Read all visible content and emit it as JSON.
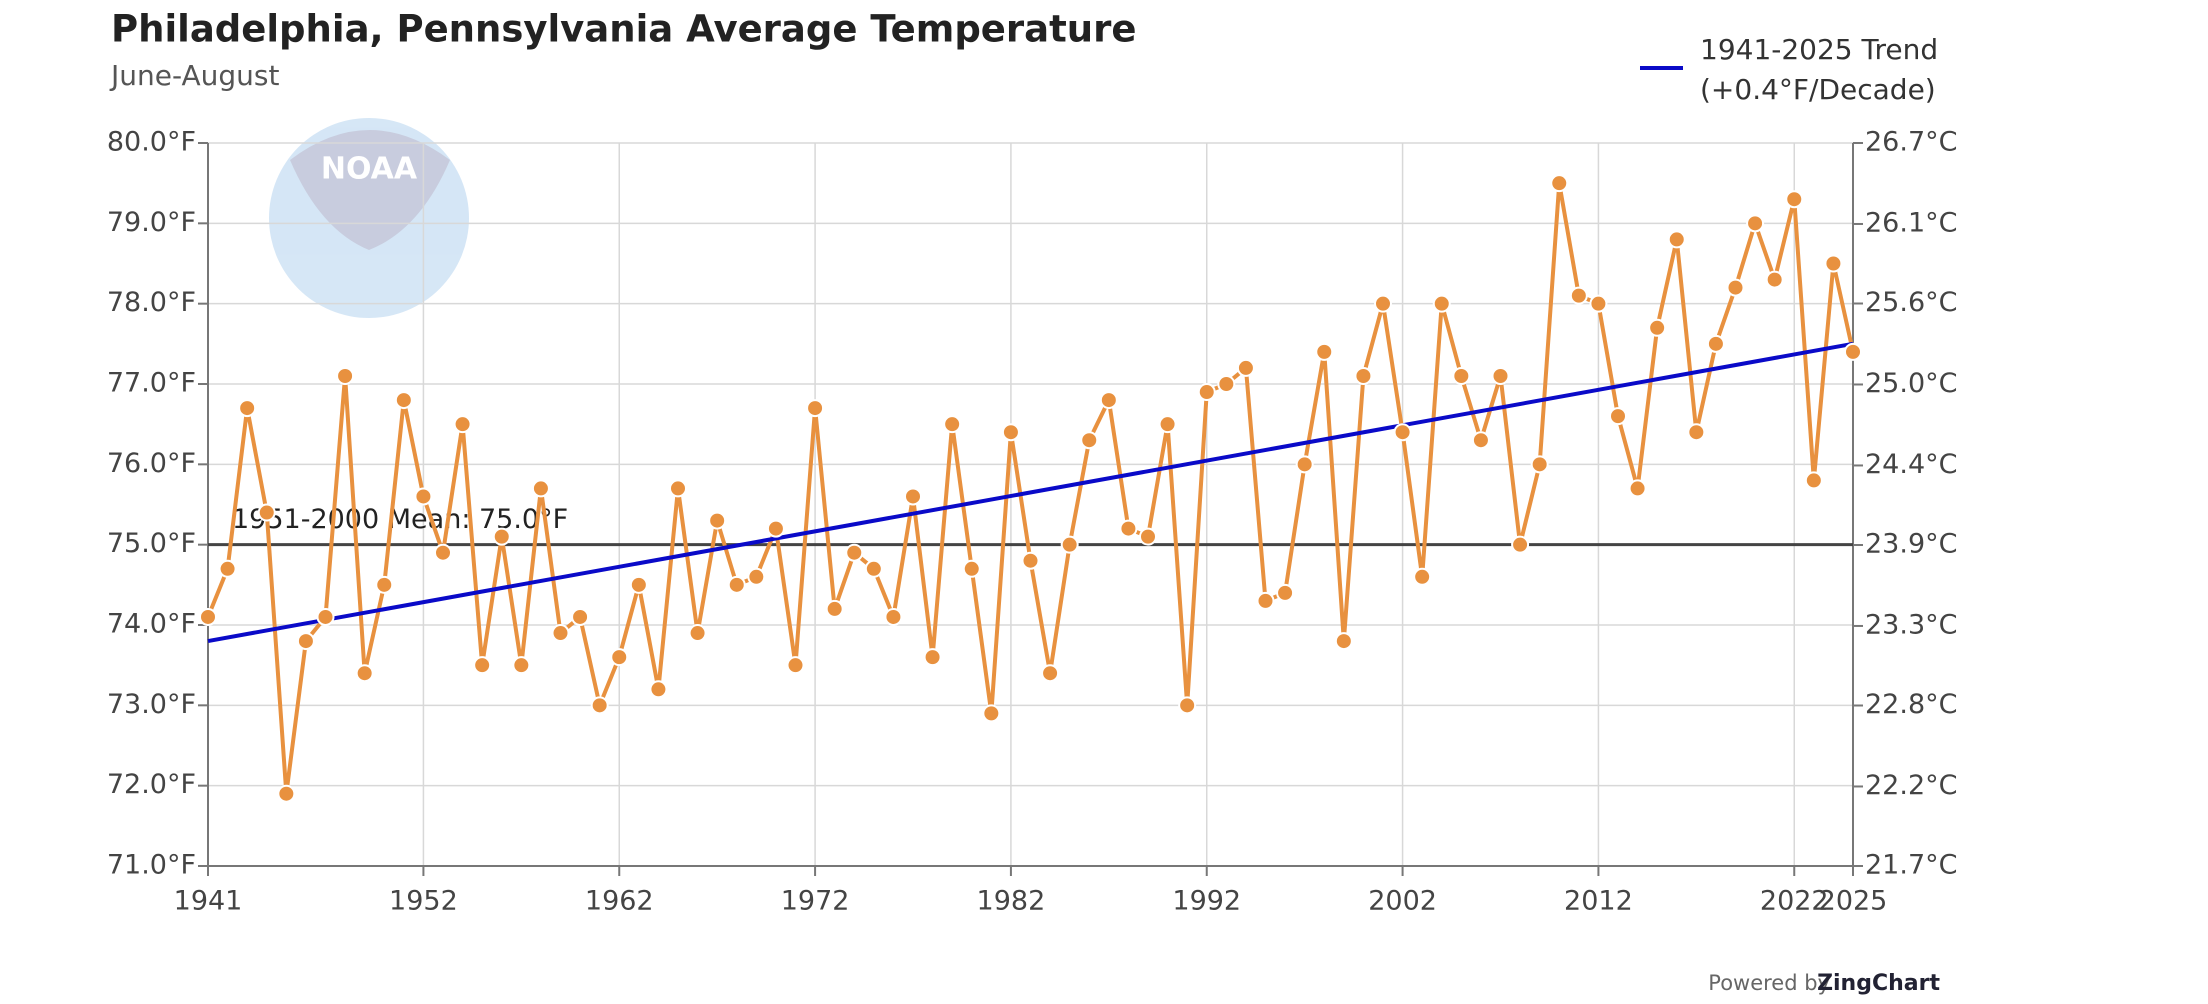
{
  "chart_data": {
    "type": "line",
    "title": "Philadelphia, Pennsylvania Average Temperature",
    "subtitle": "June-August",
    "logo": "NOAA",
    "credit_prefix": "Powered by",
    "credit_brand": "ZingChart",
    "color": "#e8913f",
    "x": [
      1941,
      1942,
      1943,
      1944,
      1945,
      1946,
      1947,
      1948,
      1949,
      1950,
      1951,
      1952,
      1953,
      1954,
      1955,
      1956,
      1957,
      1958,
      1959,
      1960,
      1961,
      1962,
      1963,
      1964,
      1965,
      1966,
      1967,
      1968,
      1969,
      1970,
      1971,
      1972,
      1973,
      1974,
      1975,
      1976,
      1977,
      1978,
      1979,
      1980,
      1981,
      1982,
      1983,
      1984,
      1985,
      1986,
      1987,
      1988,
      1989,
      1990,
      1991,
      1992,
      1993,
      1994,
      1995,
      1996,
      1997,
      1998,
      1999,
      2000,
      2001,
      2002,
      2003,
      2004,
      2005,
      2006,
      2007,
      2008,
      2009,
      2010,
      2011,
      2012,
      2013,
      2014,
      2015,
      2016,
      2017,
      2018,
      2019,
      2020,
      2021,
      2022,
      2023,
      2024,
      2025
    ],
    "values": [
      74.1,
      74.7,
      76.7,
      75.4,
      71.9,
      73.8,
      74.1,
      77.1,
      73.4,
      74.5,
      76.8,
      75.6,
      74.9,
      76.5,
      73.5,
      75.1,
      73.5,
      75.7,
      73.9,
      74.1,
      73.0,
      73.6,
      74.5,
      73.2,
      75.7,
      73.9,
      75.3,
      74.5,
      74.6,
      75.2,
      73.5,
      76.7,
      74.2,
      74.9,
      74.7,
      74.1,
      75.6,
      73.6,
      76.5,
      74.7,
      72.9,
      76.4,
      74.8,
      73.4,
      75.0,
      76.3,
      76.8,
      75.2,
      75.1,
      76.5,
      73.0,
      76.9,
      77.0,
      77.2,
      74.3,
      74.4,
      76.0,
      77.4,
      73.8,
      77.1,
      78.0,
      76.4,
      74.6,
      78.0,
      77.1,
      76.3,
      77.1,
      75.0,
      76.0,
      79.5,
      78.1,
      78.0,
      76.6,
      75.7,
      77.7,
      78.8,
      76.4,
      77.5,
      78.2,
      79.0,
      78.3,
      79.3,
      75.8,
      78.5,
      77.4
    ],
    "trend": {
      "name": "1941-2025 Trend",
      "note": "(+0.4°F/Decade)",
      "color": "#0a0ac8",
      "x": [
        1941,
        2025
      ],
      "values": [
        73.8,
        77.5
      ]
    },
    "mean_line": {
      "value": 75.0,
      "label": "1951-2000 Mean: 75.0°F",
      "color": "#444444"
    },
    "xlim": [
      1941,
      2025
    ],
    "xticks": [
      1941,
      1952,
      1962,
      1972,
      1982,
      1992,
      2002,
      2012,
      2022,
      2025
    ],
    "ylim": [
      71,
      80
    ],
    "yticks": [
      {
        "value": 71,
        "label": "71.0°F"
      },
      {
        "value": 72,
        "label": "72.0°F"
      },
      {
        "value": 73,
        "label": "73.0°F"
      },
      {
        "value": 74,
        "label": "74.0°F"
      },
      {
        "value": 75,
        "label": "75.0°F"
      },
      {
        "value": 76,
        "label": "76.0°F"
      },
      {
        "value": 77,
        "label": "77.0°F"
      },
      {
        "value": 78,
        "label": "78.0°F"
      },
      {
        "value": 79,
        "label": "79.0°F"
      },
      {
        "value": 80,
        "label": "80.0°F"
      }
    ],
    "y2lim": [
      21.67,
      26.67
    ],
    "y2ticks": [
      {
        "value": 21.67,
        "label": "21.7°C"
      },
      {
        "value": 22.22,
        "label": "22.2°C"
      },
      {
        "value": 22.78,
        "label": "22.8°C"
      },
      {
        "value": 23.33,
        "label": "23.3°C"
      },
      {
        "value": 23.89,
        "label": "23.9°C"
      },
      {
        "value": 24.44,
        "label": "24.4°C"
      },
      {
        "value": 25.0,
        "label": "25.0°C"
      },
      {
        "value": 25.56,
        "label": "25.6°C"
      },
      {
        "value": 26.11,
        "label": "26.1°C"
      },
      {
        "value": 26.67,
        "label": "26.7°C"
      }
    ],
    "grid": true,
    "legend": "top-right"
  }
}
